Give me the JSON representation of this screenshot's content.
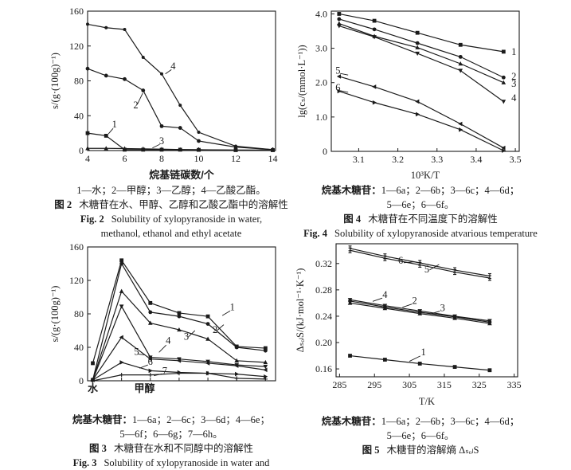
{
  "page": {
    "background": "#ffffff",
    "ink": "#1b1b1b"
  },
  "chart_data": [
    {
      "id": "fig2",
      "type": "line",
      "xlabel": "烷基链碳数/个",
      "ylabel": "s/(g·(100g)⁻¹)",
      "xlim": [
        4,
        14.15
      ],
      "ylim": [
        0,
        160
      ],
      "xticks": [
        4,
        6,
        8,
        10,
        12,
        14
      ],
      "xtick_labels": [
        {
          "v": 4,
          "t": "4"
        },
        {
          "v": 6,
          "t": "6"
        },
        {
          "v": 8,
          "t": "8"
        },
        {
          "v": 10,
          "t": "10"
        },
        {
          "v": 12,
          "t": "12"
        },
        {
          "v": 14,
          "t": "14"
        }
      ],
      "yticks": [
        0,
        40,
        80,
        120,
        160
      ],
      "ytick_labels": [
        {
          "v": 0,
          "t": "0"
        },
        {
          "v": 40,
          "t": "40"
        },
        {
          "v": 80,
          "t": "80"
        },
        {
          "v": 120,
          "t": "120"
        },
        {
          "v": 160,
          "t": "160"
        }
      ],
      "x": [
        4,
        5,
        6,
        7,
        8,
        9,
        10,
        12,
        14
      ],
      "series": [
        {
          "name": "1",
          "solvent": "水",
          "marker": "square",
          "values": [
            20,
            17,
            1,
            1,
            1,
            1,
            0.8,
            0.5,
            0.5
          ]
        },
        {
          "name": "2",
          "solvent": "甲醇",
          "marker": "circle",
          "values": [
            94,
            86,
            82,
            69,
            28,
            26,
            11,
            4,
            1
          ]
        },
        {
          "name": "3",
          "solvent": "乙醇",
          "marker": "triangle",
          "values": [
            2.5,
            2.5,
            2.3,
            2,
            1.6,
            1.2,
            1,
            0.6,
            0.5
          ]
        },
        {
          "name": "4",
          "solvent": "乙酸乙酯",
          "marker": "dot",
          "values": [
            145,
            141,
            139,
            107,
            88,
            52,
            21,
            5,
            1
          ]
        }
      ],
      "point_labels": [
        {
          "t": "1",
          "x": 5.45,
          "y": 30,
          "lx": 5.12,
          "ly": 19
        },
        {
          "t": "2",
          "x": 6.6,
          "y": 52,
          "lx": 6.98,
          "ly": 66
        },
        {
          "t": "3",
          "x": 8.0,
          "y": 11,
          "lx": 7.5,
          "ly": 3
        },
        {
          "t": "4",
          "x": 8.62,
          "y": 97,
          "lx": 8.2,
          "ly": 88
        }
      ],
      "captions": {
        "legend_prefix": "",
        "legend_line1": "1—水；2—甲醇；3—乙醇；4—乙酸乙酯。",
        "legend_line2": "",
        "fig_label_cn": "图 2",
        "fig_title_cn": "木糖苷在水、甲醇、乙醇和乙酸乙酯中的溶解性",
        "fig_label_en": "Fig. 2",
        "fig_title_en_line1": "Solubility of xylopyranoside in water,",
        "fig_title_en_line2": "methanol, ethanol and ethyl acetate"
      }
    },
    {
      "id": "fig4",
      "type": "line",
      "xlabel": "10³K/T",
      "ylabel": "lg(cₛ/(mmol·L⁻¹))",
      "xlim": [
        3.03,
        3.51
      ],
      "ylim": [
        0,
        4.08
      ],
      "xticks": [
        3.1,
        3.2,
        3.3,
        3.4,
        3.5
      ],
      "xtick_labels": [
        {
          "v": 3.1,
          "t": "3.1"
        },
        {
          "v": 3.2,
          "t": "3.2"
        },
        {
          "v": 3.3,
          "t": "3.3"
        },
        {
          "v": 3.4,
          "t": "3.4"
        },
        {
          "v": 3.5,
          "t": "3.5"
        }
      ],
      "yticks": [
        0,
        1.0,
        2.0,
        3.0,
        4.0
      ],
      "ytick_labels": [
        {
          "v": 0,
          "t": "0"
        },
        {
          "v": 1.0,
          "t": "1.0"
        },
        {
          "v": 2.0,
          "t": "2.0"
        },
        {
          "v": 3.0,
          "t": "3.0"
        },
        {
          "v": 4.0,
          "t": "4.0"
        }
      ],
      "x": [
        3.05,
        3.14,
        3.25,
        3.36,
        3.47
      ],
      "series": [
        {
          "name": "1",
          "compound": "6a",
          "marker": "square",
          "values": [
            4.0,
            3.8,
            3.45,
            3.1,
            2.9
          ]
        },
        {
          "name": "2",
          "compound": "6b",
          "marker": "circle",
          "values": [
            3.85,
            3.55,
            3.15,
            2.75,
            2.15
          ]
        },
        {
          "name": "3",
          "compound": "6c",
          "marker": "triangle",
          "values": [
            3.72,
            3.35,
            3.02,
            2.55,
            2.0
          ]
        },
        {
          "name": "4",
          "compound": "6d",
          "marker": "tri-down",
          "values": [
            3.65,
            3.33,
            2.85,
            2.35,
            1.45
          ]
        },
        {
          "name": "5",
          "compound": "6e",
          "marker": "tri-left",
          "values": [
            2.18,
            1.88,
            1.45,
            0.8,
            0.1
          ]
        },
        {
          "name": "6",
          "compound": "6f",
          "marker": "tri-right",
          "values": [
            1.75,
            1.42,
            1.08,
            0.63,
            0.02
          ]
        }
      ],
      "point_labels": [
        {
          "t": "1",
          "x": 3.49,
          "y": 2.9,
          "a": "s"
        },
        {
          "t": "2",
          "x": 3.49,
          "y": 2.18,
          "a": "s"
        },
        {
          "t": "3",
          "x": 3.49,
          "y": 1.97,
          "a": "s"
        },
        {
          "t": "4",
          "x": 3.49,
          "y": 1.55,
          "a": "s"
        },
        {
          "t": "5",
          "x": 3.047,
          "y": 2.35,
          "lx": 3.073,
          "ly": 2.22
        },
        {
          "t": "6",
          "x": 3.047,
          "y": 1.85,
          "lx": 3.073,
          "ly": 1.72
        }
      ],
      "captions": {
        "legend_prefix": "烷基木糖苷：",
        "legend_line1": "1—6a；2—6b；3—6c；4—6d；",
        "legend_line2": "5—6e；6—6f。",
        "fig_label_cn": "图 4",
        "fig_title_cn": "木糖苷在不同温度下的溶解性",
        "fig_label_en": "Fig. 4",
        "fig_title_en_line1": "Solubility of xylopyranoside atvarious temperature",
        "fig_title_en_line2": ""
      }
    },
    {
      "id": "fig3",
      "type": "line",
      "xlabel": "",
      "ylabel": "s/(g·(100g)⁻¹)",
      "xlim": [
        -0.18,
        6.35
      ],
      "ylim": [
        0,
        160
      ],
      "xticks": [
        0,
        1,
        2,
        3,
        4,
        5,
        6
      ],
      "xtick_labels": [
        {
          "v": 0,
          "t": "水"
        },
        {
          "v": 1.8,
          "t": "甲醇"
        }
      ],
      "yticks": [
        0,
        40,
        80,
        120,
        160
      ],
      "ytick_labels": [
        {
          "v": 0,
          "t": "0"
        },
        {
          "v": 40,
          "t": "40"
        },
        {
          "v": 80,
          "t": "80"
        },
        {
          "v": 120,
          "t": "120"
        },
        {
          "v": 160,
          "t": "160"
        }
      ],
      "x": [
        0,
        1,
        2,
        3,
        4,
        5,
        6
      ],
      "series": [
        {
          "name": "1",
          "compound": "6a",
          "marker": "square",
          "values": [
            21,
            144,
            93,
            81,
            77,
            41,
            39
          ]
        },
        {
          "name": "2",
          "compound": "6c",
          "marker": "circle",
          "values": [
            1,
            140,
            82,
            77,
            68,
            40,
            36
          ]
        },
        {
          "name": "3",
          "compound": "6d",
          "marker": "triangle",
          "values": [
            1,
            107,
            69,
            61,
            50,
            24,
            22
          ]
        },
        {
          "name": "4",
          "compound": "6e",
          "marker": "tri-down",
          "values": [
            1,
            89,
            28,
            26,
            23,
            19,
            17
          ]
        },
        {
          "name": "5",
          "compound": "6f",
          "marker": "tri-left",
          "values": [
            1,
            52,
            26,
            24,
            21,
            18,
            13
          ]
        },
        {
          "name": "6",
          "compound": "6g",
          "marker": "tri-right",
          "values": [
            1,
            22,
            12,
            10,
            9,
            8,
            5
          ]
        },
        {
          "name": "7",
          "compound": "6h",
          "marker": "plus",
          "values": [
            0,
            7,
            7,
            9,
            9,
            3,
            2
          ]
        }
      ],
      "point_labels": [
        {
          "t": "1",
          "x": 4.85,
          "y": 88,
          "lx": 4.5,
          "ly": 78
        },
        {
          "t": "2",
          "x": 4.25,
          "y": 61,
          "lx": 4.55,
          "ly": 67
        },
        {
          "t": "3",
          "x": 3.25,
          "y": 53,
          "lx": 3.55,
          "ly": 60
        },
        {
          "t": "4",
          "x": 2.62,
          "y": 48,
          "lx": 2.3,
          "ly": 34
        },
        {
          "t": "5",
          "x": 1.52,
          "y": 35,
          "lx": 1.8,
          "ly": 31
        },
        {
          "t": "6",
          "x": 2.0,
          "y": 23,
          "lx": 1.62,
          "ly": 15
        },
        {
          "t": "7",
          "x": 2.5,
          "y": 12,
          "lx": 2.12,
          "ly": 6
        }
      ],
      "captions": {
        "legend_prefix": "烷基木糖苷：",
        "legend_line1": "1—6a；2—6c；3—6d；4—6e；",
        "legend_line2": "5—6f；6—6g；7—6h。",
        "fig_label_cn": "图 3",
        "fig_title_cn": "木糖苷在水和不同醇中的溶解性",
        "fig_label_en": "Fig. 3",
        "fig_title_en_line1": "Solubility of xylopyranoside in water and",
        "fig_title_en_line2": ""
      }
    },
    {
      "id": "fig5",
      "type": "line",
      "xlabel": "T/K",
      "ylabel": "ΔₛₒₗS/(kJ·mol⁻¹·K⁻¹)",
      "xlim": [
        284,
        336
      ],
      "ylim": [
        0.148,
        0.35
      ],
      "xticks": [
        285,
        295,
        305,
        315,
        325,
        335
      ],
      "xtick_labels": [
        {
          "v": 285,
          "t": "285"
        },
        {
          "v": 295,
          "t": "295"
        },
        {
          "v": 305,
          "t": "305"
        },
        {
          "v": 315,
          "t": "315"
        },
        {
          "v": 325,
          "t": "325"
        },
        {
          "v": 335,
          "t": "335"
        }
      ],
      "yticks": [
        0.16,
        0.2,
        0.24,
        0.28,
        0.32
      ],
      "ytick_labels": [
        {
          "v": 0.16,
          "t": "0.16"
        },
        {
          "v": 0.2,
          "t": "0.20"
        },
        {
          "v": 0.24,
          "t": "0.24"
        },
        {
          "v": 0.28,
          "t": "0.28"
        },
        {
          "v": 0.32,
          "t": "0.32"
        }
      ],
      "x": [
        288,
        298,
        308,
        318,
        328
      ],
      "series": [
        {
          "name": "1",
          "compound": "6a",
          "marker": "square",
          "values": [
            0.18,
            0.174,
            0.168,
            0.163,
            0.158
          ]
        },
        {
          "name": "2",
          "compound": "6b",
          "marker": "circle",
          "values": [
            0.263,
            0.254,
            0.246,
            0.239,
            0.231
          ]
        },
        {
          "name": "3",
          "compound": "6c",
          "marker": "triangle",
          "values": [
            0.26,
            0.252,
            0.244,
            0.237,
            0.229
          ]
        },
        {
          "name": "4",
          "compound": "6d",
          "marker": "tri-down",
          "values": [
            0.265,
            0.256,
            0.248,
            0.24,
            0.233
          ]
        },
        {
          "name": "5",
          "compound": "6e",
          "marker": "ibeam",
          "values": [
            0.34,
            0.328,
            0.318,
            0.307,
            0.298
          ]
        },
        {
          "name": "6",
          "compound": "6f",
          "marker": "ibeam",
          "values": [
            0.343,
            0.331,
            0.321,
            0.31,
            0.301
          ]
        }
      ],
      "point_labels": [
        {
          "t": "1",
          "x": 309,
          "y": 0.1855,
          "lx": 305,
          "ly": 0.1715
        },
        {
          "t": "2",
          "x": 306.5,
          "y": 0.2635,
          "lx": 303,
          "ly": 0.2535
        },
        {
          "t": "3",
          "x": 314.5,
          "y": 0.2525,
          "lx": 311,
          "ly": 0.2435
        },
        {
          "t": "4",
          "x": 298,
          "y": 0.2725,
          "lx": 294.5,
          "ly": 0.2625
        },
        {
          "t": "5",
          "x": 310,
          "y": 0.3115,
          "lx": 313.5,
          "ly": 0.3185
        },
        {
          "t": "6",
          "x": 302.5,
          "y": 0.3245,
          "lx": 306.5,
          "ly": 0.3225
        }
      ],
      "captions": {
        "legend_prefix": "烷基木糖苷：",
        "legend_line1": "1—6a；2—6b；3—6c；4—6d；",
        "legend_line2": "5—6e；6—6f。",
        "fig_label_cn": "图 5",
        "fig_title_cn": "木糖苷的溶解熵 ΔₛₒₗS",
        "fig_label_en": "",
        "fig_title_en_line1": "",
        "fig_title_en_line2": ""
      }
    }
  ]
}
